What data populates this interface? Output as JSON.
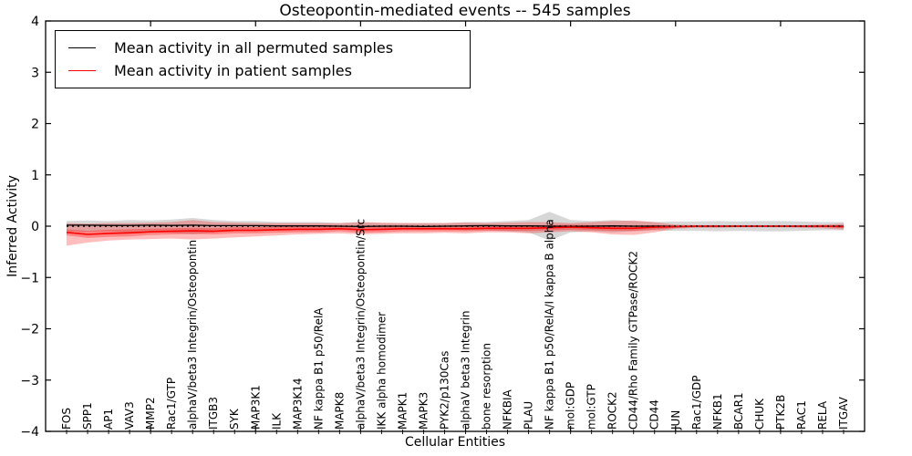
{
  "chart_data": {
    "type": "line",
    "title": "Osteopontin-mediated events -- 545 samples",
    "xlabel": "Cellular Entities",
    "ylabel": "Inferred Activity",
    "ylim": [
      -4,
      4
    ],
    "yticks": [
      -4,
      -3,
      -2,
      -1,
      0,
      1,
      2,
      3,
      4
    ],
    "x_range": [
      0,
      39
    ],
    "x_axis_major_ticks": [
      5,
      10,
      15,
      20,
      25,
      30,
      35
    ],
    "grid": false,
    "legend_position": "upper left",
    "x_labels": [
      "FOS",
      "SPP1",
      "AP1",
      "VAV3",
      "MMP2",
      "Rac1/GTP",
      "alphaV/beta3 Integrin/Osteopontin",
      "ITGB3",
      "SYK",
      "MAP3K1",
      "ILK",
      "MAP3K14",
      "NF kappa B1 p50/RelA",
      "MAPK8",
      "alphaV/beta3 Integrin/Osteopontin/Src",
      "IKK alpha homodimer",
      "MAPK1",
      "MAPK3",
      "PYK2/p130Cas",
      "alphaV beta3 Integrin",
      "bone resorption",
      "NFKBIA",
      "PLAU",
      "NF kappa B1 p50/RelA/I kappa B alpha",
      "mol:GDP",
      "mol:GTP",
      "ROCK2",
      "CD44/Rho Family GTPase/ROCK2",
      "CD44",
      "JUN",
      "Rac1/GDP",
      "NFKB1",
      "BCAR1",
      "CHUK",
      "PTK2B",
      "RAC1",
      "RELA",
      "ITGAV"
    ],
    "series": [
      {
        "name": "Mean activity in all permuted samples",
        "color": "#000000",
        "values": [
          0.02,
          0.02,
          0.015,
          0.015,
          0.02,
          0.015,
          0.02,
          0.01,
          0.01,
          0.01,
          0.005,
          0.005,
          0.005,
          0,
          -0.005,
          0,
          0,
          -0.005,
          0,
          0.005,
          0.01,
          0.005,
          0.005,
          0,
          -0.005,
          0,
          0.005,
          0,
          0,
          -0.005,
          0,
          0,
          0,
          0,
          0,
          0,
          0,
          0
        ]
      },
      {
        "name": "Mean activity in patient samples",
        "color": "#ff0000",
        "values": [
          -0.12,
          -0.16,
          -0.14,
          -0.13,
          -0.11,
          -0.1,
          -0.09,
          -0.1,
          -0.08,
          -0.08,
          -0.07,
          -0.06,
          -0.06,
          -0.05,
          -0.07,
          -0.06,
          -0.05,
          -0.05,
          -0.05,
          -0.05,
          -0.04,
          -0.04,
          -0.04,
          -0.03,
          -0.02,
          -0.03,
          -0.04,
          -0.04,
          -0.02,
          -0.01,
          0,
          0,
          0,
          0,
          0,
          0,
          0,
          -0.01
        ]
      }
    ],
    "bands": [
      {
        "name": "permuted-sample-spread",
        "color": "rgba(130,130,130,0.32)",
        "high": [
          0.1,
          0.11,
          0.1,
          0.12,
          0.11,
          0.13,
          0.16,
          0.12,
          0.1,
          0.1,
          0.08,
          0.08,
          0.08,
          0.06,
          0.08,
          0.06,
          0.06,
          0.06,
          0.06,
          0.08,
          0.08,
          0.1,
          0.12,
          0.28,
          0.12,
          0.1,
          0.12,
          0.1,
          0.08,
          0.09,
          0.09,
          0.1,
          0.09,
          0.1,
          0.1,
          0.09,
          0.08,
          0.08
        ],
        "low": [
          -0.1,
          -0.11,
          -0.1,
          -0.12,
          -0.11,
          -0.13,
          -0.16,
          -0.12,
          -0.1,
          -0.1,
          -0.08,
          -0.08,
          -0.08,
          -0.06,
          -0.08,
          -0.06,
          -0.06,
          -0.06,
          -0.06,
          -0.08,
          -0.08,
          -0.1,
          -0.12,
          -0.28,
          -0.12,
          -0.1,
          -0.12,
          -0.1,
          -0.08,
          -0.09,
          -0.09,
          -0.1,
          -0.09,
          -0.1,
          -0.1,
          -0.09,
          -0.08,
          -0.08
        ]
      },
      {
        "name": "patient-sample-spread-outer",
        "color": "rgba(255,0,0,0.26)",
        "high": [
          0.06,
          0.05,
          0.06,
          0.06,
          0.07,
          0.08,
          0.12,
          0.08,
          0.07,
          0.06,
          0.06,
          0.06,
          0.06,
          0.06,
          0.08,
          0.07,
          0.06,
          0.06,
          0.06,
          0.07,
          0.06,
          0.07,
          0.08,
          0.08,
          0.06,
          0.08,
          0.1,
          0.11,
          0.08,
          0.03,
          0.02,
          0.02,
          0.02,
          0.02,
          0.02,
          0.02,
          0.03,
          0.05
        ],
        "low": [
          -0.38,
          -0.32,
          -0.28,
          -0.26,
          -0.25,
          -0.24,
          -0.26,
          -0.24,
          -0.22,
          -0.2,
          -0.18,
          -0.16,
          -0.15,
          -0.14,
          -0.16,
          -0.15,
          -0.14,
          -0.14,
          -0.13,
          -0.14,
          -0.12,
          -0.12,
          -0.14,
          -0.12,
          -0.1,
          -0.12,
          -0.16,
          -0.17,
          -0.12,
          -0.05,
          -0.03,
          -0.03,
          -0.02,
          -0.02,
          -0.02,
          -0.03,
          -0.04,
          -0.07
        ]
      },
      {
        "name": "patient-sample-spread-inner",
        "color": "rgba(255,0,0,0.30)",
        "high": [
          -0.06,
          -0.09,
          -0.07,
          -0.06,
          -0.05,
          -0.04,
          -0.03,
          -0.04,
          -0.02,
          -0.02,
          -0.01,
          0,
          0,
          0,
          -0.01,
          0,
          0,
          0,
          0,
          0,
          0.01,
          0.01,
          0.01,
          0.02,
          0.03,
          0.02,
          0.01,
          0.01,
          0.02,
          0.01,
          0.01,
          0.01,
          0.01,
          0.01,
          0.01,
          0.01,
          0.01,
          0.02
        ],
        "low": [
          -0.18,
          -0.23,
          -0.21,
          -0.2,
          -0.17,
          -0.16,
          -0.15,
          -0.16,
          -0.14,
          -0.14,
          -0.13,
          -0.12,
          -0.12,
          -0.1,
          -0.13,
          -0.12,
          -0.1,
          -0.1,
          -0.1,
          -0.1,
          -0.09,
          -0.09,
          -0.09,
          -0.08,
          -0.07,
          -0.08,
          -0.09,
          -0.09,
          -0.07,
          -0.03,
          -0.02,
          -0.02,
          -0.02,
          -0.02,
          -0.02,
          -0.02,
          -0.02,
          -0.03
        ]
      }
    ],
    "zero_line": {
      "y": 0,
      "color": "#000000",
      "style": "dotted"
    }
  }
}
